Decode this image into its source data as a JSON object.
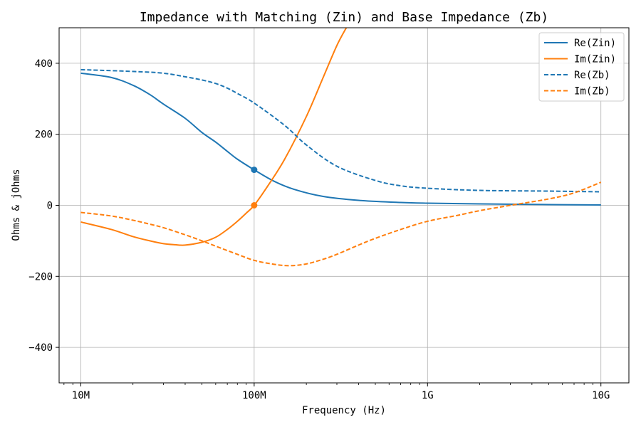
{
  "chart_data": {
    "type": "line",
    "title": "Impedance with Matching (Zin) and Base Impedance (Zb)",
    "xlabel": "Frequency (Hz)",
    "ylabel": "Ohms & jOhms",
    "xscale": "log",
    "xlim": [
      7500000,
      14500000000
    ],
    "ylim": [
      -500,
      500
    ],
    "xticks": [
      {
        "value": 10000000,
        "label": "10M"
      },
      {
        "value": 100000000,
        "label": "100M"
      },
      {
        "value": 1000000000,
        "label": "1G"
      },
      {
        "value": 10000000000,
        "label": "10G"
      }
    ],
    "yticks": [
      {
        "value": 400,
        "label": "400"
      },
      {
        "value": 200,
        "label": "200"
      },
      {
        "value": 0,
        "label": "0"
      },
      {
        "value": -200,
        "label": "−200"
      },
      {
        "value": -400,
        "label": "−400"
      }
    ],
    "grid": true,
    "legend_position": "top-right",
    "series": [
      {
        "name": "Re(Zin)",
        "color": "#1f77b4",
        "style": "solid",
        "x": [
          10000000,
          15000000,
          20000000,
          25000000,
          30000000,
          40000000,
          50000000,
          60000000,
          70000000,
          80000000,
          100000000,
          130000000,
          170000000,
          250000000,
          400000000,
          700000000,
          1000000000,
          2000000000,
          5000000000,
          10000000000
        ],
        "y": [
          372,
          360,
          338,
          312,
          285,
          245,
          205,
          178,
          152,
          130,
          100,
          68,
          45,
          25,
          14,
          8,
          6,
          4,
          2,
          1
        ]
      },
      {
        "name": "Im(Zin)",
        "color": "#ff7f0e",
        "style": "solid",
        "x": [
          10000000,
          15000000,
          20000000,
          25000000,
          30000000,
          35000000,
          40000000,
          50000000,
          60000000,
          70000000,
          80000000,
          90000000,
          100000000,
          120000000,
          150000000,
          200000000,
          250000000,
          300000000,
          340000000
        ],
        "y": [
          -47,
          -68,
          -88,
          -100,
          -108,
          -111,
          -112,
          -104,
          -90,
          -68,
          -45,
          -22,
          0,
          55,
          130,
          250,
          360,
          450,
          500
        ]
      },
      {
        "name": "Re(Zb)",
        "color": "#1f77b4",
        "style": "dashed",
        "x": [
          10000000,
          20000000,
          30000000,
          40000000,
          50000000,
          60000000,
          70000000,
          80000000,
          100000000,
          150000000,
          200000000,
          300000000,
          500000000,
          700000000,
          1000000000,
          2000000000,
          5000000000,
          10000000000
        ],
        "y": [
          382,
          377,
          372,
          362,
          353,
          343,
          330,
          315,
          288,
          225,
          170,
          110,
          70,
          55,
          48,
          42,
          40,
          38
        ]
      },
      {
        "name": "Im(Zb)",
        "color": "#ff7f0e",
        "style": "dashed",
        "x": [
          10000000,
          15000000,
          20000000,
          25000000,
          30000000,
          40000000,
          50000000,
          60000000,
          80000000,
          100000000,
          130000000,
          160000000,
          200000000,
          250000000,
          300000000,
          400000000,
          500000000,
          700000000,
          1000000000,
          1500000000,
          2000000000,
          3000000000,
          5000000000,
          7000000000,
          10000000000
        ],
        "y": [
          -20,
          -30,
          -42,
          -53,
          -63,
          -83,
          -100,
          -115,
          -138,
          -155,
          -166,
          -170,
          -165,
          -152,
          -138,
          -112,
          -93,
          -68,
          -45,
          -28,
          -15,
          0,
          18,
          35,
          65
        ]
      }
    ],
    "markers": [
      {
        "x": 100000000,
        "y": 100,
        "color": "#1f77b4",
        "series": "Re(Zin)"
      },
      {
        "x": 100000000,
        "y": 0,
        "color": "#ff7f0e",
        "series": "Im(Zin)"
      }
    ]
  }
}
